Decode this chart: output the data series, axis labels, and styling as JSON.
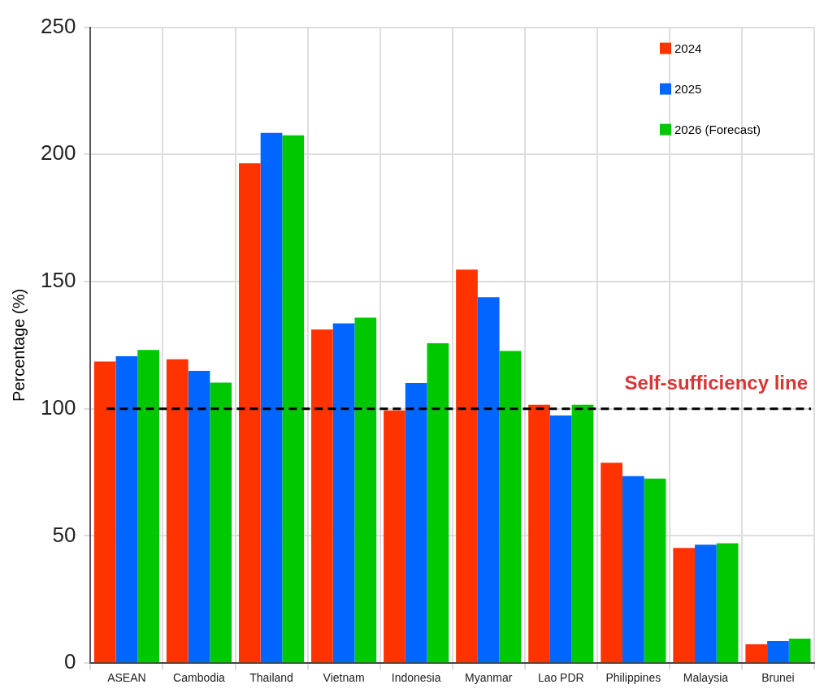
{
  "chart_data": {
    "type": "bar",
    "ylabel": "Percentage (%)",
    "categories": [
      "ASEAN",
      "Cambodia",
      "Thailand",
      "Vietnam",
      "Indonesia",
      "Myanmar",
      "Lao PDR",
      "Philippines",
      "Malaysia",
      "Brunei"
    ],
    "series": [
      {
        "name": "2024",
        "color": "#ff3300",
        "values": [
          118.6,
          119.5,
          196.5,
          131.2,
          99.4,
          154.7,
          101.6,
          78.8,
          45.3,
          7.4
        ]
      },
      {
        "name": "2025",
        "color": "#0066ff",
        "values": [
          120.7,
          114.9,
          208.5,
          133.6,
          110.1,
          143.9,
          97.4,
          73.5,
          46.6,
          8.7
        ]
      },
      {
        "name": "2026 (Forecast)",
        "color": "#00c800",
        "values": [
          123.1,
          110.3,
          207.5,
          135.8,
          125.8,
          122.7,
          101.6,
          72.6,
          47.1,
          9.6
        ]
      }
    ],
    "ylim": [
      0,
      250
    ],
    "yticks": [
      0,
      50,
      100,
      150,
      200,
      250
    ],
    "grid": true,
    "legend": "top right",
    "ref_lines": [
      {
        "axis": "y",
        "value": 100,
        "label": "Self-sufficiency line",
        "color": "#000000",
        "line_style": "dashed"
      }
    ]
  }
}
